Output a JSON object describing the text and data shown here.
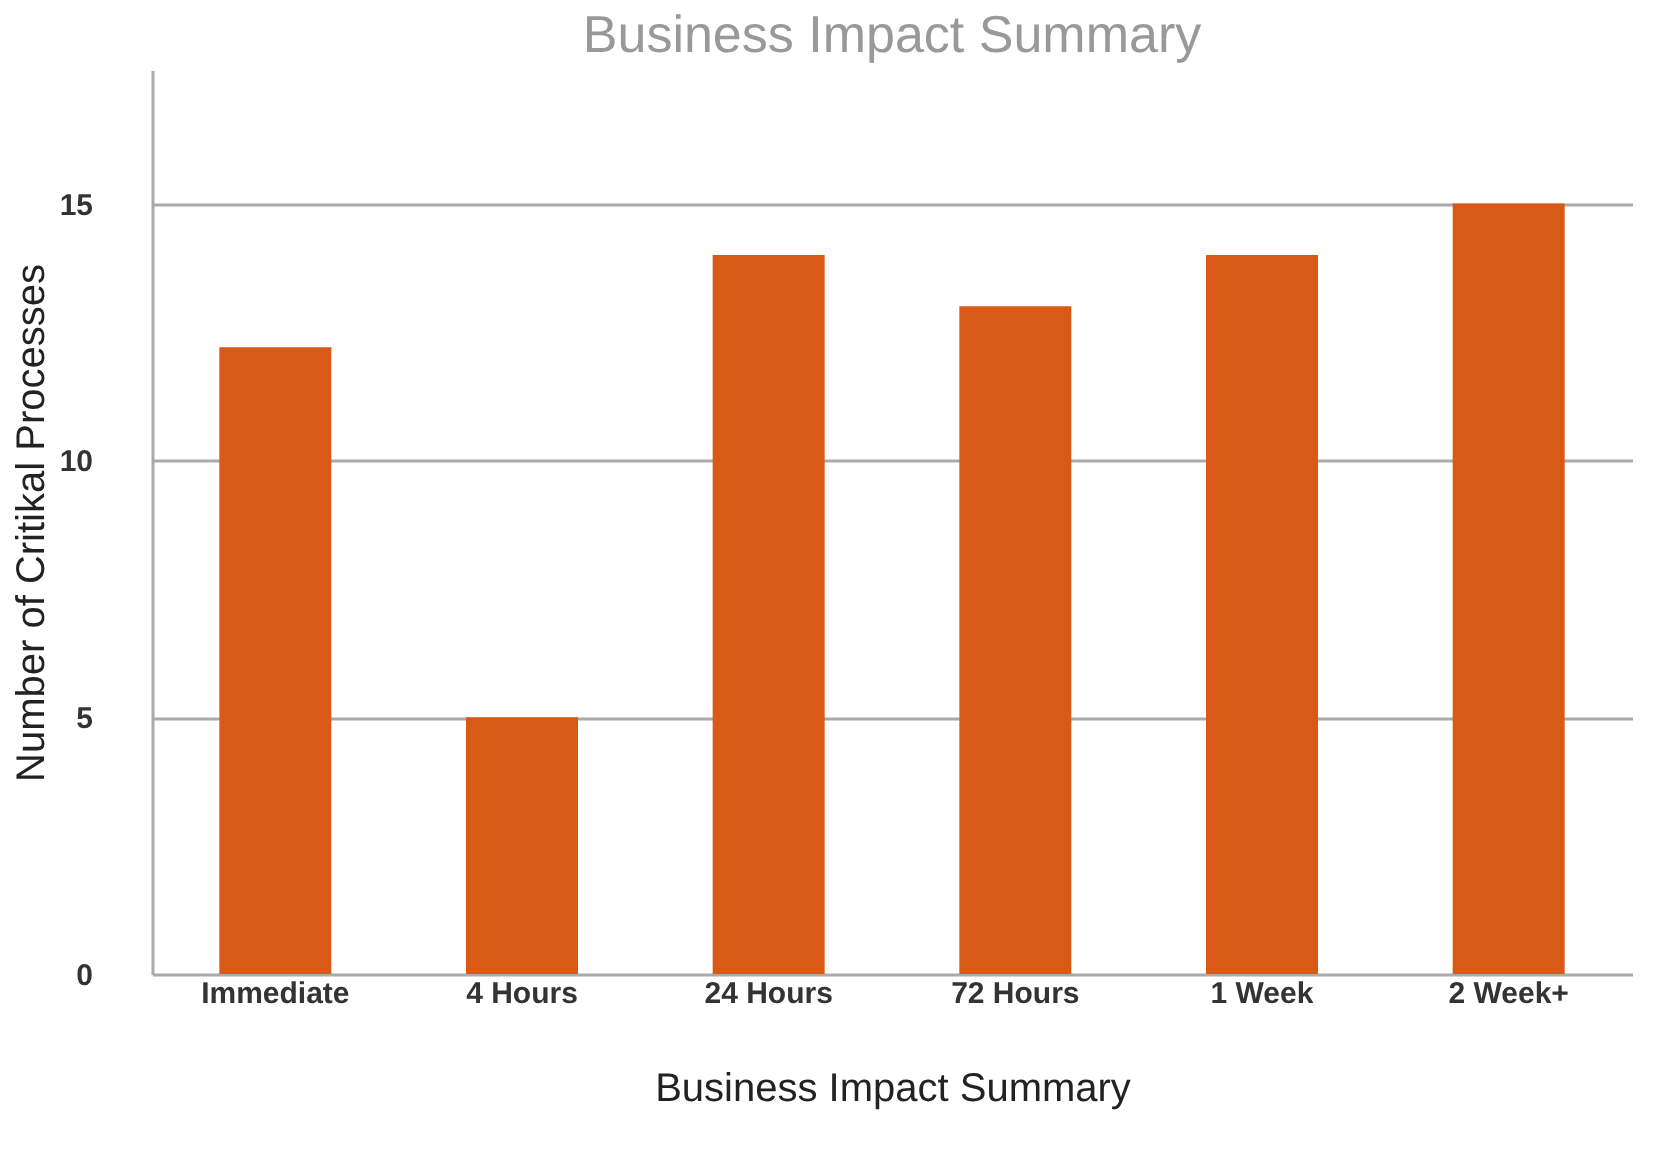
{
  "chart_data": {
    "type": "bar",
    "title": "Business Impact Summary",
    "xlabel": "Business Impact Summary",
    "ylabel": "Number of Critikal Processes",
    "categories": [
      "Immediate",
      "4 Hours",
      "24 Hours",
      "72 Hours",
      "1 Week",
      "2 Week+"
    ],
    "values": [
      12.2,
      5,
      14,
      13,
      14,
      15
    ],
    "color": "#d95a17",
    "ylim": [
      0,
      17.6
    ],
    "yticks": [
      0,
      5,
      10,
      15
    ],
    "grid": "y"
  }
}
